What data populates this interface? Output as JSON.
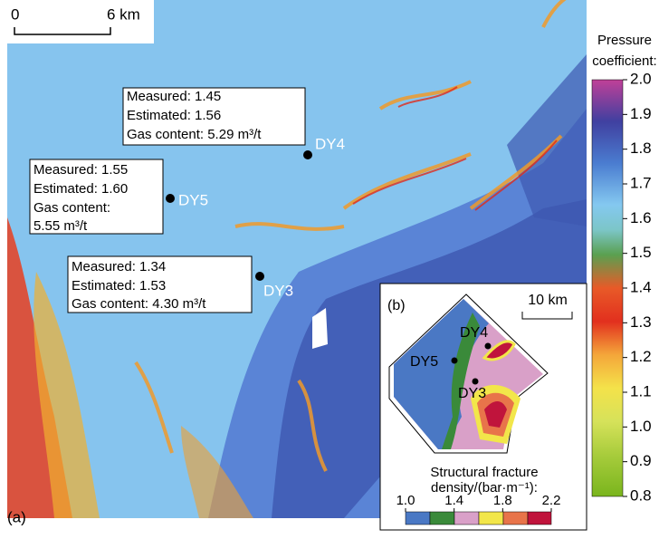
{
  "scale_bar": {
    "start": "0",
    "end": "6 km"
  },
  "panel_label": "(a)",
  "wells": [
    {
      "name": "DY4",
      "lines": [
        "Measured: 1.45",
        "Estimated: 1.56",
        "Gas content: 5.29 m³/t"
      ]
    },
    {
      "name": "DY5",
      "lines": [
        "Measured: 1.55",
        "Estimated: 1.60",
        "Gas content:",
        "5.55 m³/t"
      ]
    },
    {
      "name": "DY3",
      "lines": [
        "Measured: 1.34",
        "Estimated: 1.53",
        "Gas content: 4.30 m³/t"
      ]
    }
  ],
  "colorbar": {
    "title": [
      "Pressure",
      "coefficient:"
    ],
    "lim": [
      0.8,
      2.0
    ],
    "ticks": [
      {
        "value": 2,
        "label": "2.0"
      },
      1.9,
      1.8,
      1.7,
      1.6,
      1.5,
      1.4,
      1.3,
      1.2,
      1.1,
      {
        "value": 1,
        "label": "1.0"
      },
      0.9,
      0.8
    ]
  },
  "inset": {
    "label": "(b)",
    "scale": "10 km",
    "wells": [
      "DY4",
      "DY5",
      "DY3"
    ],
    "legend": {
      "title": [
        "Structural fracture",
        "density/(bar·m⁻¹):"
      ],
      "lim": [
        1,
        2.2
      ],
      "ticks": [
        {
          "value": 1,
          "label": "1.0"
        },
        1.4,
        1.8,
        2.2
      ]
    }
  }
}
